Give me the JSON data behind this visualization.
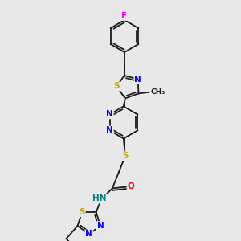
{
  "background_color": "#e8e8e8",
  "bond_color": "#1a1a1a",
  "atom_colors": {
    "N": "#0000ff",
    "S": "#ccaa00",
    "O": "#ff0000",
    "F": "#ff00ff",
    "H": "#008080",
    "C": "#1a1a1a"
  },
  "lw": 1.3,
  "fs": 7.5,
  "bl": 22
}
